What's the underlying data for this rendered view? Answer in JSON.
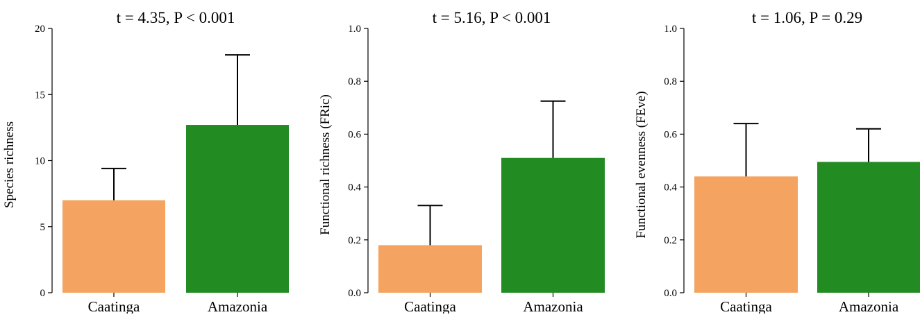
{
  "colors": {
    "Caatinga": "#f4a460",
    "Amazonia": "#228b22",
    "axis": "#000000"
  },
  "chart_data": [
    {
      "type": "bar",
      "title": "t = 4.35, P < 0.001",
      "xlabel": "",
      "ylabel": "Species richness",
      "categories": [
        "Caatinga",
        "Amazonia"
      ],
      "values": [
        7.0,
        12.7
      ],
      "error": [
        2.4,
        5.3
      ],
      "ylim": [
        0,
        20
      ],
      "yticks": [
        0,
        5,
        10,
        15,
        20
      ],
      "ytick_labels": [
        "0",
        "5",
        "10",
        "15",
        "20"
      ],
      "grid": false,
      "legend": false
    },
    {
      "type": "bar",
      "title": "t = 5.16, P < 0.001",
      "xlabel": "",
      "ylabel": "Functional richness (FRic)",
      "categories": [
        "Caatinga",
        "Amazonia"
      ],
      "values": [
        0.18,
        0.51
      ],
      "error": [
        0.15,
        0.215
      ],
      "ylim": [
        0,
        1.0
      ],
      "yticks": [
        0,
        0.2,
        0.4,
        0.6,
        0.8,
        1.0
      ],
      "ytick_labels": [
        "0.0",
        "0.2",
        "0.4",
        "0.6",
        "0.8",
        "1.0"
      ],
      "grid": false,
      "legend": false
    },
    {
      "type": "bar",
      "title": "t = 1.06, P = 0.29",
      "xlabel": "",
      "ylabel": "Functional evenness (FEve)",
      "categories": [
        "Caatinga",
        "Amazonia"
      ],
      "values": [
        0.44,
        0.495
      ],
      "error": [
        0.2,
        0.125
      ],
      "ylim": [
        0,
        1.0
      ],
      "yticks": [
        0,
        0.2,
        0.4,
        0.6,
        0.8,
        1.0
      ],
      "ytick_labels": [
        "0.0",
        "0.2",
        "0.4",
        "0.6",
        "0.8",
        "1.0"
      ],
      "grid": false,
      "legend": false
    }
  ]
}
